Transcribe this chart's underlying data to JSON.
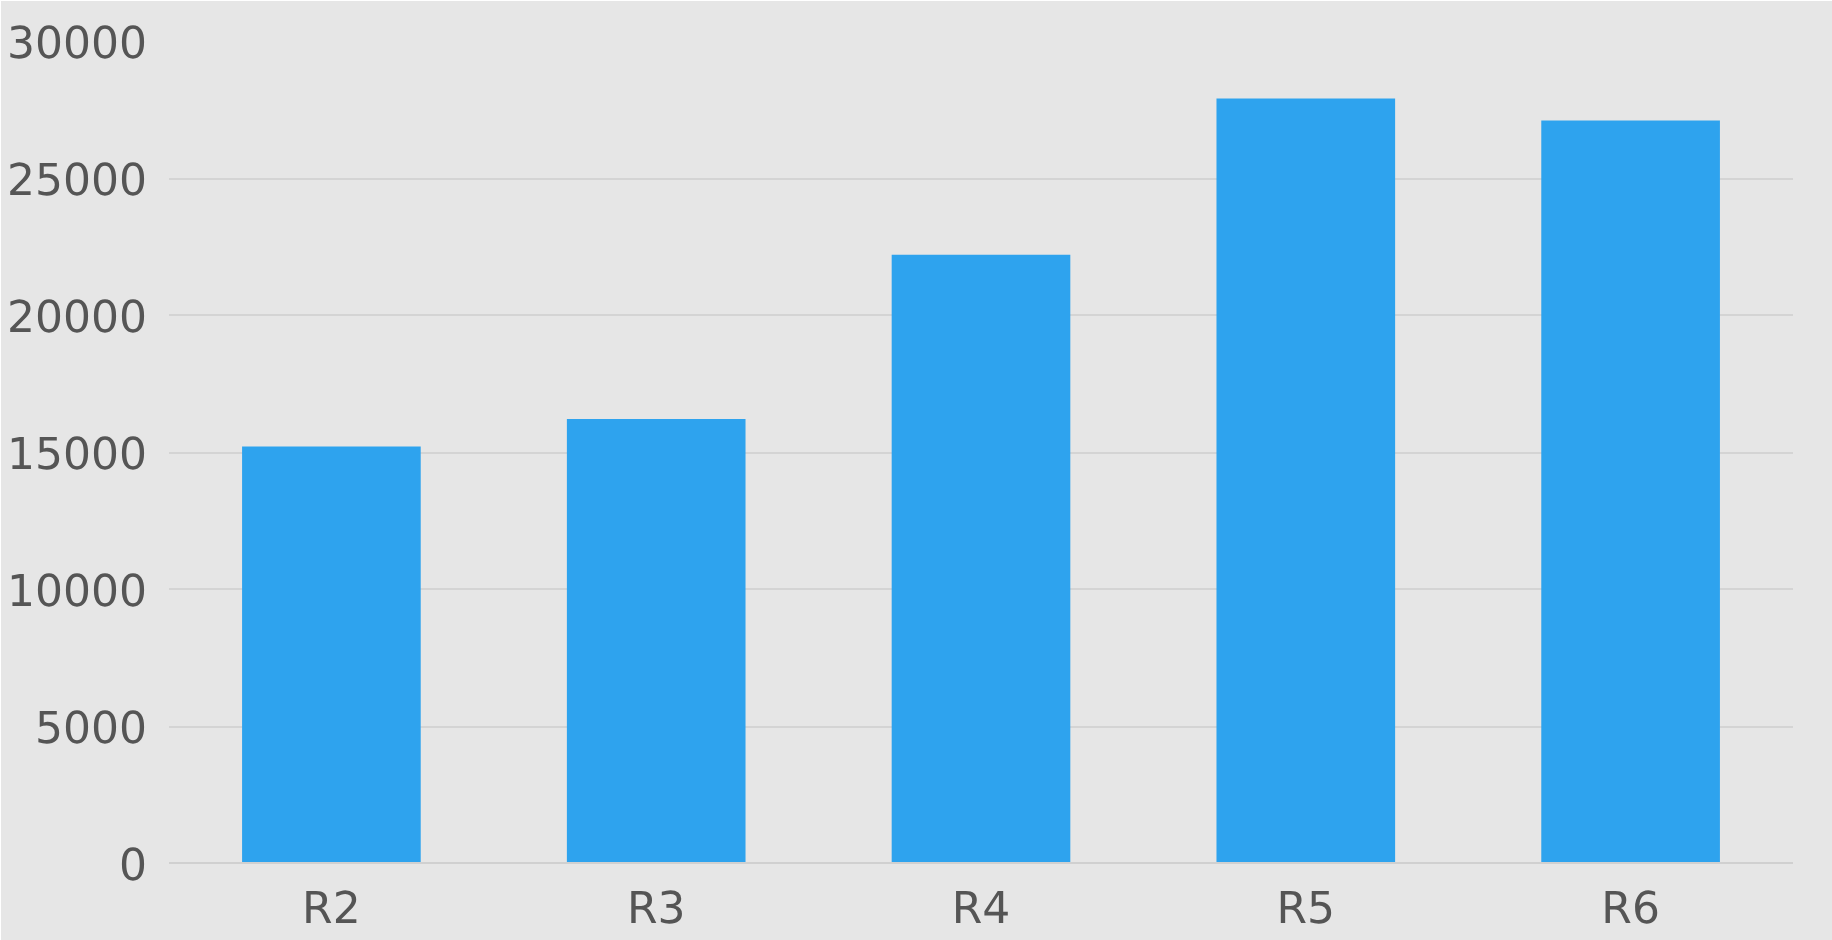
{
  "chart_data": {
    "type": "bar",
    "categories": [
      "R2",
      "R3",
      "R4",
      "R5",
      "R6"
    ],
    "values": [
      15200,
      16200,
      22200,
      27900,
      27100
    ],
    "color": "#2ea3ee",
    "ylim": [
      0,
      30000
    ],
    "yticks": [
      0,
      5000,
      10000,
      15000,
      20000,
      25000,
      30000
    ],
    "grid": "y"
  }
}
